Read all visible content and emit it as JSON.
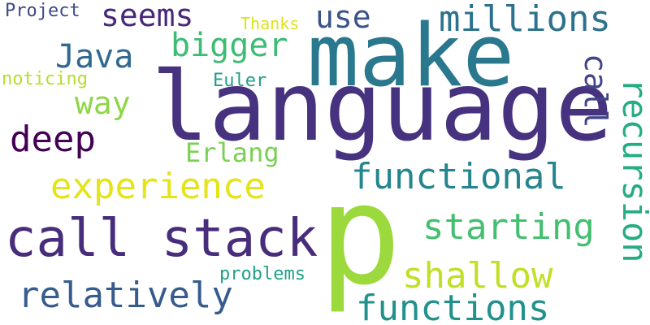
{
  "words": [
    {
      "text": "language",
      "color": "#46327e"
    },
    {
      "text": "make",
      "color": "#2a788e"
    },
    {
      "text": "p",
      "color": "#9bd93c"
    },
    {
      "text": "call stack",
      "color": "#472d7b"
    },
    {
      "text": "functions",
      "color": "#21918c"
    },
    {
      "text": "millions",
      "color": "#2c728e"
    },
    {
      "text": "functional",
      "color": "#25858e"
    },
    {
      "text": "experience",
      "color": "#e4e419"
    },
    {
      "text": "relatively",
      "color": "#365c8d"
    },
    {
      "text": "starting",
      "color": "#44bf70"
    },
    {
      "text": "shallow",
      "color": "#c0df25"
    },
    {
      "text": "recursion",
      "color": "#25ac82"
    },
    {
      "text": "deep",
      "color": "#440154"
    },
    {
      "text": "Java",
      "color": "#31688e"
    },
    {
      "text": "bigger",
      "color": "#3dbc74"
    },
    {
      "text": "seems",
      "color": "#482878"
    },
    {
      "text": "use",
      "color": "#3b528b"
    },
    {
      "text": "way",
      "color": "#8ed645"
    },
    {
      "text": "call",
      "color": "#414487"
    },
    {
      "text": "Erlang",
      "color": "#7ad151"
    },
    {
      "text": "Project",
      "color": "#3e4989"
    },
    {
      "text": "noticing",
      "color": "#b5de2b"
    },
    {
      "text": "Euler",
      "color": "#1f9e89"
    },
    {
      "text": "Thanks",
      "color": "#dde318"
    },
    {
      "text": "problems",
      "color": "#1fa187"
    }
  ]
}
